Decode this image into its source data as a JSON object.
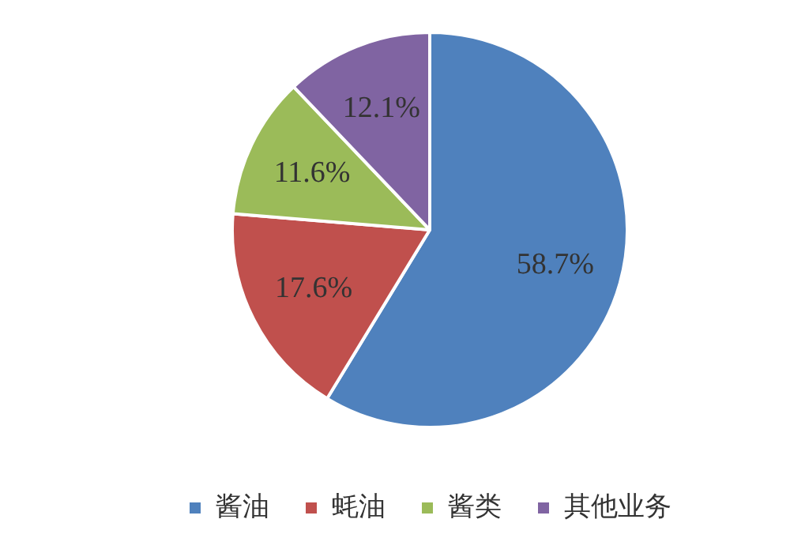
{
  "chart_data": {
    "type": "pie",
    "categories": [
      "酱油",
      "蚝油",
      "酱类",
      "其他业务"
    ],
    "values": [
      58.7,
      17.6,
      11.6,
      12.1
    ],
    "colors": [
      "#4f81bd",
      "#c0504d",
      "#9bbb59",
      "#8064a2"
    ],
    "value_labels": [
      "58.7%",
      "17.6%",
      "11.6%",
      "12.1%"
    ],
    "legend": "bottom"
  }
}
